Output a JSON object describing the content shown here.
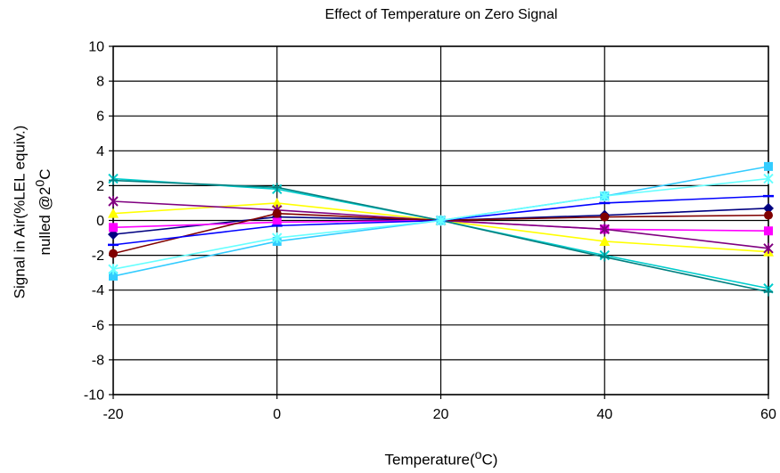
{
  "chart_data": {
    "type": "line",
    "title": "Effect of Temperature on Zero Signal",
    "xlabel_main": "Temperature(",
    "xlabel_sup": "o",
    "xlabel_unit": "C)",
    "ylabel_line1": "Signal in Air(%LEL equiv.)",
    "ylabel_line2_main": "nulled @2",
    "ylabel_line2_sup": "0",
    "ylabel_line2_unit": "C",
    "x_ticks": [
      "-20",
      "0",
      "20",
      "40",
      "60"
    ],
    "y_ticks": [
      "10",
      "8",
      "6",
      "4",
      "2",
      "0",
      "-2",
      "-4",
      "-6",
      "-8",
      "-10"
    ],
    "xlim": [
      -20,
      60
    ],
    "ylim": [
      -10,
      10
    ],
    "grid": true,
    "x": [
      -20,
      0,
      20,
      40,
      60
    ],
    "series": [
      {
        "color": "#000080",
        "marker": "diamond",
        "values": [
          -0.8,
          0.2,
          0,
          0.3,
          0.7
        ]
      },
      {
        "color": "#FF00FF",
        "marker": "square",
        "values": [
          -0.4,
          -0.1,
          0,
          -0.5,
          -0.6
        ]
      },
      {
        "color": "#FFFF00",
        "marker": "triangle",
        "values": [
          0.4,
          1.0,
          0,
          -1.2,
          -1.8
        ]
      },
      {
        "color": "#00CCCC",
        "marker": "x",
        "values": [
          2.4,
          1.8,
          0,
          -2.0,
          -3.9
        ]
      },
      {
        "color": "#800080",
        "marker": "star",
        "values": [
          1.1,
          0.6,
          0,
          -0.5,
          -1.6
        ]
      },
      {
        "color": "#800000",
        "marker": "circle",
        "values": [
          -1.9,
          0.4,
          0,
          0.2,
          0.3
        ]
      },
      {
        "color": "#008080",
        "marker": "plus",
        "values": [
          2.3,
          1.9,
          0,
          -2.1,
          -4.1
        ]
      },
      {
        "color": "#0000FF",
        "marker": "dash",
        "values": [
          -1.4,
          -0.3,
          0,
          1.0,
          1.4
        ]
      },
      {
        "color": "#33CCFF",
        "marker": "square",
        "values": [
          -3.2,
          -1.2,
          0,
          1.4,
          3.1
        ]
      },
      {
        "color": "#66FFFF",
        "marker": "star",
        "values": [
          -2.8,
          -1.0,
          0,
          1.4,
          2.4
        ]
      }
    ]
  }
}
